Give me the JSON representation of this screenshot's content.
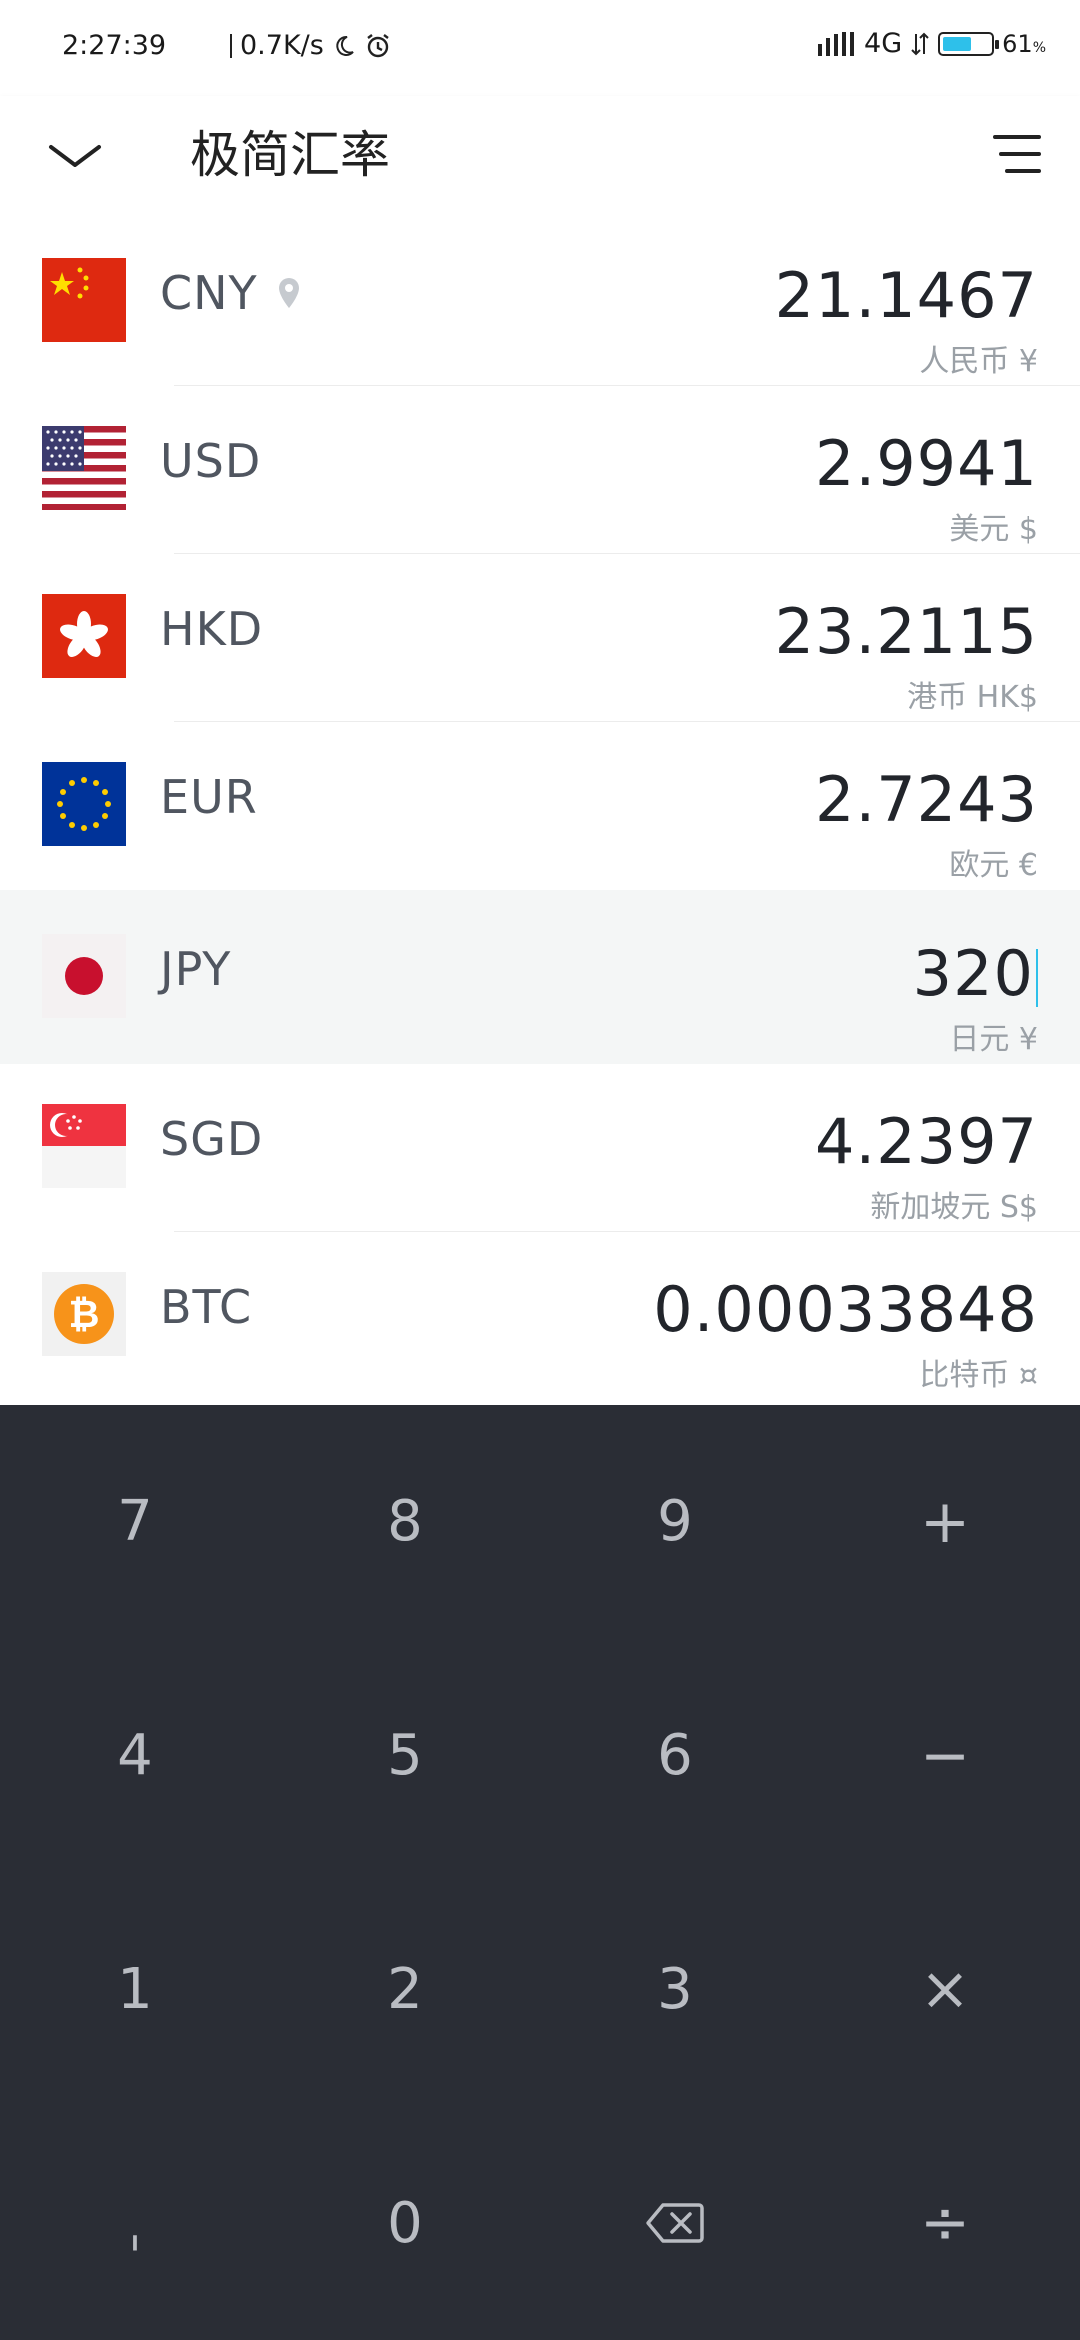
{
  "status_bar": {
    "time": "2:27:39",
    "net_speed": "0.7K/s",
    "network": "4G",
    "battery_percent": "61",
    "battery_level": 0.61
  },
  "app_bar": {
    "title": "极简汇率"
  },
  "currencies": [
    {
      "code": "CNY",
      "amount": "21.1467",
      "name": "人民币 ¥",
      "flag": "china-flag",
      "location": true
    },
    {
      "code": "USD",
      "amount": "2.9941",
      "name": "美元 $",
      "flag": "usa-flag"
    },
    {
      "code": "HKD",
      "amount": "23.2115",
      "name": "港币 HK$",
      "flag": "hong-kong-flag"
    },
    {
      "code": "EUR",
      "amount": "2.7243",
      "name": "欧元 €",
      "flag": "eu-flag"
    },
    {
      "code": "JPY",
      "amount": "320",
      "name": "日元 ¥",
      "flag": "japan-flag",
      "active": true
    },
    {
      "code": "SGD",
      "amount": "4.2397",
      "name": "新加坡元 S$",
      "flag": "singapore-flag"
    },
    {
      "code": "BTC",
      "amount": "0.00033848",
      "name": "比特币 ¤",
      "flag": "bitcoin-icon"
    }
  ],
  "keypad": {
    "k7": "7",
    "k8": "8",
    "k9": "9",
    "plus": "+",
    "k4": "4",
    "k5": "5",
    "k6": "6",
    "minus": "−",
    "k1": "1",
    "k2": "2",
    "k3": "3",
    "multiply": "×",
    "dot": "ˌ",
    "k0": "0",
    "divide": "÷"
  },
  "colors": {
    "keypad_bg": "#2a2d35",
    "active_row_bg": "#f4f6f6",
    "accent": "#2ec0ea"
  }
}
